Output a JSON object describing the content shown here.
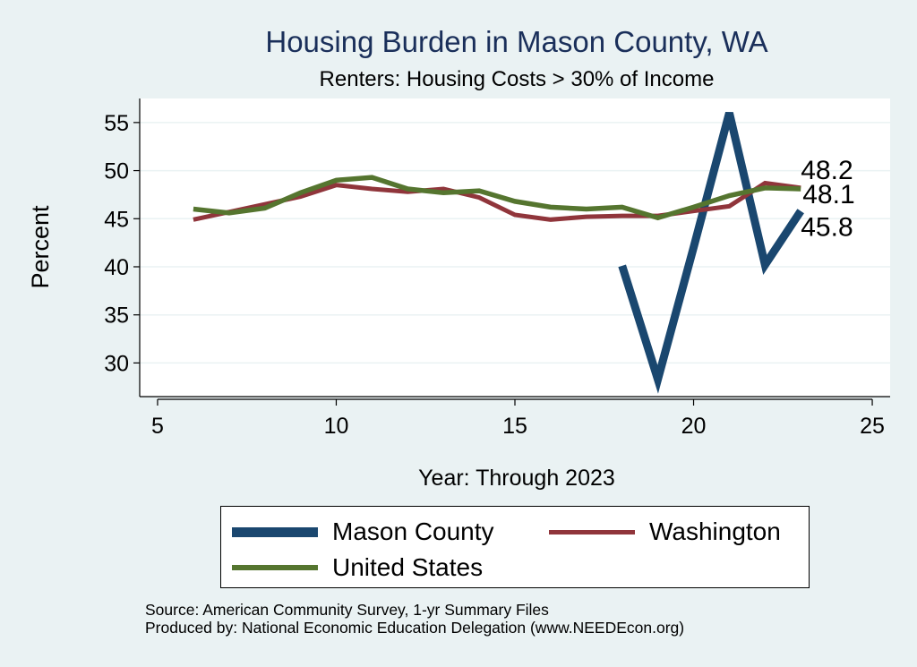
{
  "chart_data": {
    "type": "line",
    "title": "Housing Burden in Mason County, WA",
    "subtitle": "Renters: Housing Costs > 30% of Income",
    "xlabel": "Year: Through 2023",
    "ylabel": "Percent",
    "xlim": [
      4.5,
      25.5
    ],
    "ylim": [
      26.5,
      57.5
    ],
    "xticks": [
      5,
      10,
      15,
      20,
      25
    ],
    "yticks": [
      30,
      35,
      40,
      45,
      50,
      55
    ],
    "grid": true,
    "series": [
      {
        "name": "Mason County",
        "color": "#1a476f",
        "x": [
          18,
          19,
          20,
          21,
          22,
          23
        ],
        "values": [
          40.1,
          28.3,
          42.0,
          56.0,
          40.2,
          45.8
        ],
        "end_label": "45.8"
      },
      {
        "name": "Washington",
        "color": "#90353b",
        "x": [
          6,
          7,
          8,
          9,
          10,
          11,
          12,
          13,
          14,
          15,
          16,
          17,
          18,
          19,
          20,
          21,
          22,
          23
        ],
        "values": [
          44.9,
          45.7,
          46.5,
          47.3,
          48.5,
          48.1,
          47.8,
          48.1,
          47.2,
          45.4,
          44.9,
          45.2,
          45.3,
          45.3,
          45.8,
          46.3,
          48.7,
          48.2
        ],
        "end_label": "48.2"
      },
      {
        "name": "United States",
        "color": "#55752f",
        "x": [
          6,
          7,
          8,
          9,
          10,
          11,
          12,
          13,
          14,
          15,
          16,
          17,
          18,
          19,
          20,
          21,
          22,
          23
        ],
        "values": [
          46.0,
          45.6,
          46.1,
          47.7,
          49.0,
          49.3,
          48.1,
          47.7,
          47.9,
          46.8,
          46.2,
          46.0,
          46.2,
          45.1,
          46.2,
          47.4,
          48.2,
          48.1
        ],
        "end_label": "48.1"
      }
    ],
    "legend": {
      "position": "bottom",
      "entries": [
        "Mason County",
        "Washington",
        "United States"
      ]
    }
  },
  "notes": {
    "source": "Source: American Community Survey, 1-yr Summary Files",
    "produced_by": "Produced by: National Economic Education Delegation (www.NEEDEcon.org)"
  }
}
